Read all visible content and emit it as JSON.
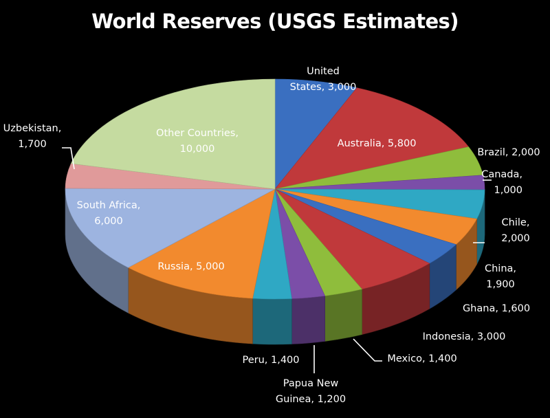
{
  "chart_data": {
    "type": "pie",
    "title": "World Reserves (USGS Estimates)",
    "slices": [
      {
        "label": "United States",
        "display": [
          "United",
          "States, 3,000"
        ],
        "value": 3000,
        "color": "#3a6fc0"
      },
      {
        "label": "Australia",
        "display": [
          "Australia, 5,800"
        ],
        "value": 5800,
        "color": "#c0393b"
      },
      {
        "label": "Brazil",
        "display": [
          "Brazil, 2,000"
        ],
        "value": 2000,
        "color": "#8fbd3c"
      },
      {
        "label": "Canada",
        "display": [
          "Canada,",
          "1,000"
        ],
        "value": 1000,
        "color": "#7b4ea8"
      },
      {
        "label": "Chile",
        "display": [
          "Chile,",
          "2,000"
        ],
        "value": 2000,
        "color": "#2fa8c4"
      },
      {
        "label": "China",
        "display": [
          "China,",
          "1,900"
        ],
        "value": 1900,
        "color": "#f28a2e"
      },
      {
        "label": "Ghana",
        "display": [
          "Ghana, 1,600"
        ],
        "value": 1600,
        "color": "#3a6fc0"
      },
      {
        "label": "Indonesia",
        "display": [
          "Indonesia, 3,000"
        ],
        "value": 3000,
        "color": "#c0393b"
      },
      {
        "label": "Mexico",
        "display": [
          "Mexico, 1,400"
        ],
        "value": 1400,
        "color": "#8fbd3c"
      },
      {
        "label": "Papua New Guinea",
        "display": [
          "Papua New",
          "Guinea, 1,200"
        ],
        "value": 1200,
        "color": "#7b4ea8"
      },
      {
        "label": "Peru",
        "display": [
          "Peru, 1,400"
        ],
        "value": 1400,
        "color": "#2fa8c4"
      },
      {
        "label": "Russia",
        "display": [
          "Russia, 5,000"
        ],
        "value": 5000,
        "color": "#f28a2e"
      },
      {
        "label": "South Africa",
        "display": [
          "South Africa,",
          "6,000"
        ],
        "value": 6000,
        "color": "#9db4e0"
      },
      {
        "label": "Uzbekistan",
        "display": [
          "Uzbekistan,",
          "1,700"
        ],
        "value": 1700,
        "color": "#e09a9a"
      },
      {
        "label": "Other Countries",
        "display": [
          "Other Countries,",
          "10,000"
        ],
        "value": 10000,
        "color": "#c5dba0"
      }
    ]
  }
}
